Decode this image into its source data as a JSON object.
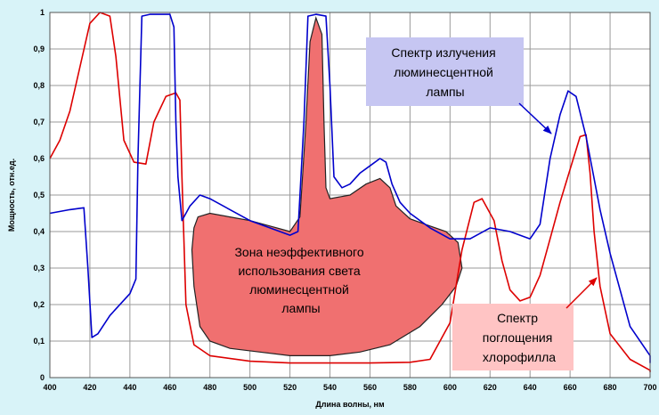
{
  "chart_data": {
    "type": "line",
    "xlabel": "Длина волны, нм",
    "ylabel": "Мощность, отн.ед.",
    "xlim": [
      400,
      700
    ],
    "ylim": [
      0,
      1
    ],
    "x_ticks": [
      "400",
      "420",
      "440",
      "460",
      "480",
      "500",
      "520",
      "540",
      "560",
      "580",
      "600",
      "620",
      "640",
      "660",
      "680",
      "700"
    ],
    "y_ticks": [
      "0",
      "0,1",
      "0,2",
      "0,3",
      "0,4",
      "0,5",
      "0,6",
      "0,7",
      "0,8",
      "0,9",
      "1"
    ],
    "grid": true,
    "series": [
      {
        "name": "Спектр излучения люминесцентной лампы",
        "color": "#0000cc",
        "points": [
          [
            400,
            0.45
          ],
          [
            410,
            0.46
          ],
          [
            417,
            0.465
          ],
          [
            419,
            0.3
          ],
          [
            421,
            0.11
          ],
          [
            424,
            0.12
          ],
          [
            430,
            0.17
          ],
          [
            440,
            0.23
          ],
          [
            443,
            0.27
          ],
          [
            444,
            0.6
          ],
          [
            446,
            0.99
          ],
          [
            450,
            0.995
          ],
          [
            460,
            0.995
          ],
          [
            462,
            0.96
          ],
          [
            463,
            0.7
          ],
          [
            464,
            0.55
          ],
          [
            466,
            0.43
          ],
          [
            470,
            0.47
          ],
          [
            475,
            0.5
          ],
          [
            480,
            0.49
          ],
          [
            490,
            0.46
          ],
          [
            500,
            0.43
          ],
          [
            510,
            0.41
          ],
          [
            520,
            0.39
          ],
          [
            524,
            0.4
          ],
          [
            527,
            0.7
          ],
          [
            529,
            0.99
          ],
          [
            533,
            0.995
          ],
          [
            538,
            0.99
          ],
          [
            540,
            0.8
          ],
          [
            542,
            0.55
          ],
          [
            546,
            0.52
          ],
          [
            550,
            0.53
          ],
          [
            555,
            0.56
          ],
          [
            560,
            0.58
          ],
          [
            565,
            0.6
          ],
          [
            568,
            0.59
          ],
          [
            571,
            0.53
          ],
          [
            575,
            0.48
          ],
          [
            580,
            0.45
          ],
          [
            590,
            0.41
          ],
          [
            600,
            0.38
          ],
          [
            610,
            0.38
          ],
          [
            620,
            0.41
          ],
          [
            630,
            0.4
          ],
          [
            640,
            0.38
          ],
          [
            645,
            0.42
          ],
          [
            650,
            0.6
          ],
          [
            655,
            0.72
          ],
          [
            659,
            0.785
          ],
          [
            663,
            0.77
          ],
          [
            668,
            0.66
          ],
          [
            675,
            0.46
          ],
          [
            680,
            0.34
          ],
          [
            690,
            0.14
          ],
          [
            700,
            0.06
          ],
          [
            710,
            0.04
          ]
        ]
      },
      {
        "name": "Спектр поглощения хлорофилла",
        "color": "#dd0000",
        "points": [
          [
            400,
            0.6
          ],
          [
            405,
            0.65
          ],
          [
            410,
            0.73
          ],
          [
            415,
            0.85
          ],
          [
            420,
            0.97
          ],
          [
            425,
            1.0
          ],
          [
            430,
            0.99
          ],
          [
            433,
            0.88
          ],
          [
            437,
            0.65
          ],
          [
            442,
            0.59
          ],
          [
            448,
            0.585
          ],
          [
            452,
            0.7
          ],
          [
            458,
            0.77
          ],
          [
            463,
            0.78
          ],
          [
            465,
            0.76
          ],
          [
            466,
            0.55
          ],
          [
            468,
            0.2
          ],
          [
            472,
            0.09
          ],
          [
            480,
            0.06
          ],
          [
            500,
            0.045
          ],
          [
            520,
            0.04
          ],
          [
            540,
            0.04
          ],
          [
            560,
            0.04
          ],
          [
            580,
            0.042
          ],
          [
            590,
            0.05
          ],
          [
            600,
            0.15
          ],
          [
            606,
            0.35
          ],
          [
            612,
            0.48
          ],
          [
            616,
            0.49
          ],
          [
            622,
            0.43
          ],
          [
            626,
            0.32
          ],
          [
            630,
            0.24
          ],
          [
            635,
            0.21
          ],
          [
            640,
            0.22
          ],
          [
            645,
            0.28
          ],
          [
            650,
            0.38
          ],
          [
            655,
            0.48
          ],
          [
            660,
            0.57
          ],
          [
            665,
            0.66
          ],
          [
            668,
            0.665
          ],
          [
            670,
            0.56
          ],
          [
            672,
            0.4
          ],
          [
            675,
            0.25
          ],
          [
            680,
            0.12
          ],
          [
            690,
            0.05
          ],
          [
            700,
            0.02
          ],
          [
            710,
            0.015
          ]
        ]
      }
    ],
    "region": {
      "fill": "#f07070",
      "stroke": "#222222",
      "points": [
        [
          474,
          0.44
        ],
        [
          480,
          0.45
        ],
        [
          490,
          0.44
        ],
        [
          500,
          0.43
        ],
        [
          510,
          0.415
        ],
        [
          520,
          0.4
        ],
        [
          525,
          0.44
        ],
        [
          528,
          0.7
        ],
        [
          530,
          0.92
        ],
        [
          533,
          0.985
        ],
        [
          536,
          0.94
        ],
        [
          537,
          0.7
        ],
        [
          538,
          0.52
        ],
        [
          540,
          0.49
        ],
        [
          550,
          0.5
        ],
        [
          558,
          0.53
        ],
        [
          565,
          0.545
        ],
        [
          570,
          0.52
        ],
        [
          573,
          0.47
        ],
        [
          580,
          0.435
        ],
        [
          590,
          0.415
        ],
        [
          598,
          0.4
        ],
        [
          604,
          0.37
        ],
        [
          606,
          0.3
        ],
        [
          603,
          0.25
        ],
        [
          596,
          0.2
        ],
        [
          585,
          0.14
        ],
        [
          570,
          0.09
        ],
        [
          555,
          0.07
        ],
        [
          540,
          0.06
        ],
        [
          520,
          0.06
        ],
        [
          505,
          0.07
        ],
        [
          490,
          0.08
        ],
        [
          480,
          0.1
        ],
        [
          475,
          0.14
        ],
        [
          472,
          0.25
        ],
        [
          471,
          0.35
        ],
        [
          472,
          0.41
        ]
      ]
    },
    "annotations": [
      "Спектр излучения люминесцентной лампы",
      "Зона неэффективного использования света люминесцентной лампы",
      "Спектр поглощения хлорофилла"
    ]
  }
}
